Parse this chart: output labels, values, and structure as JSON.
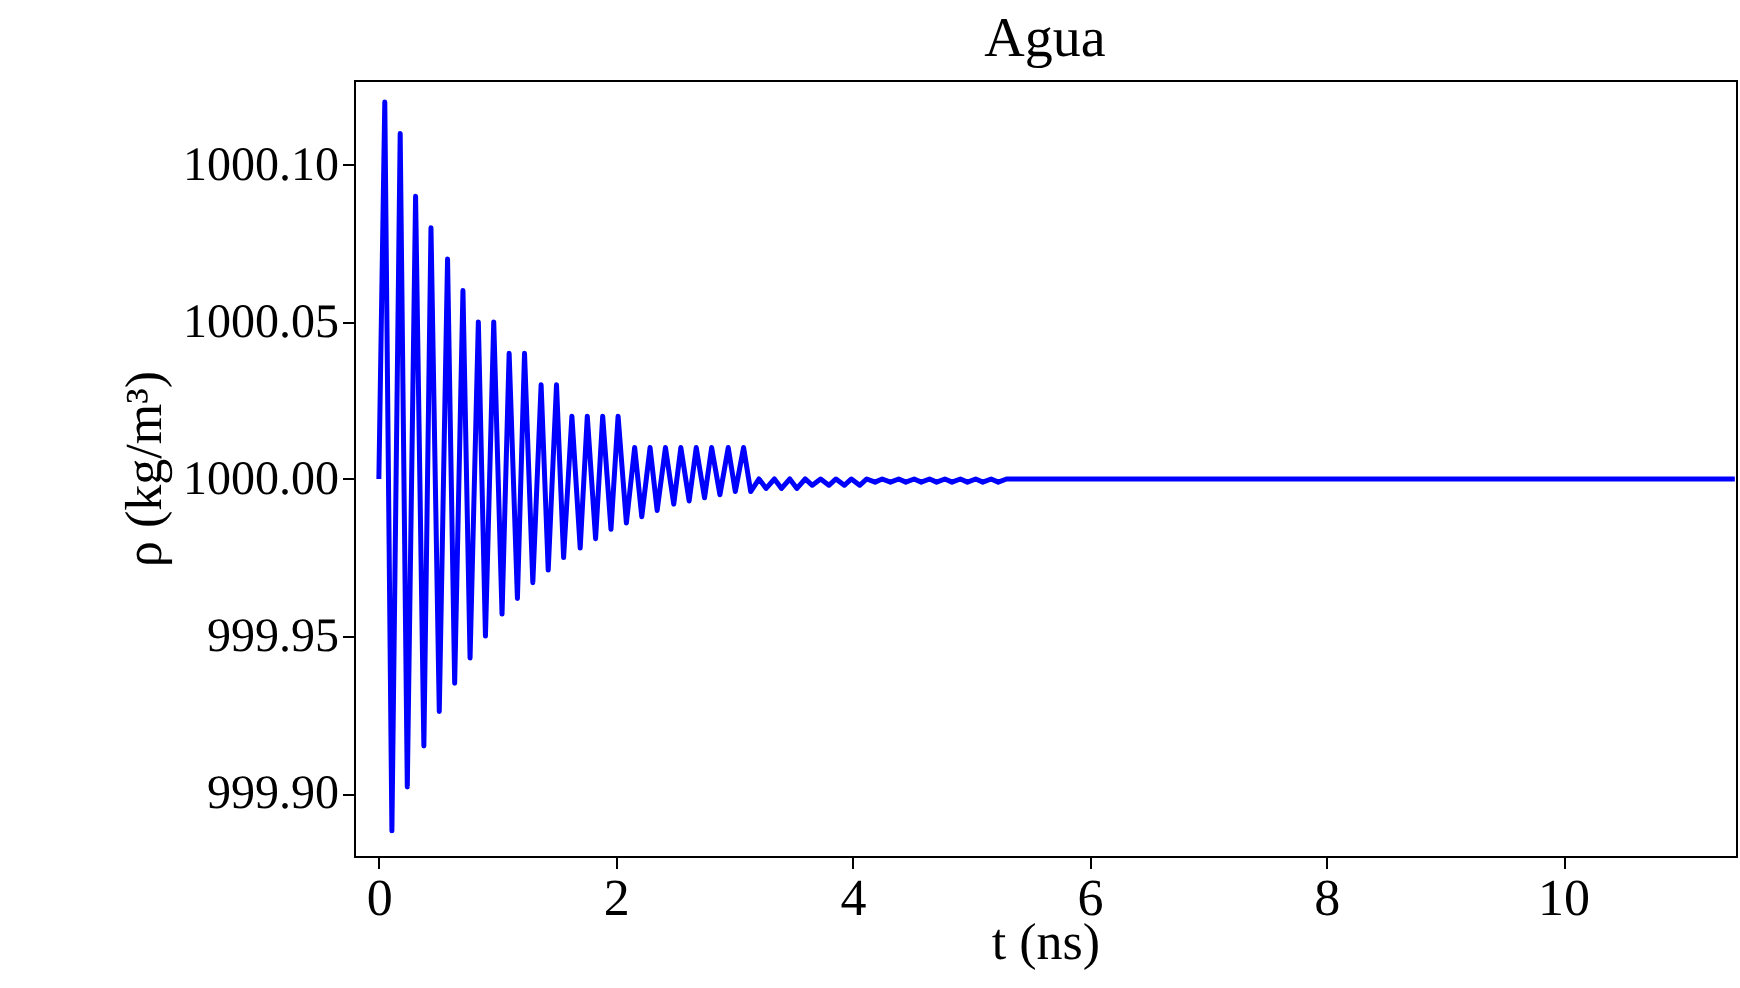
{
  "chart_data": {
    "type": "line",
    "title": "Agua",
    "xlabel": "t   (ns)",
    "ylabel": "ρ  (kg/m³)",
    "x": [
      0,
      0.05,
      0.11,
      0.18,
      0.24,
      0.31,
      0.38,
      0.44,
      0.51,
      0.58,
      0.64,
      0.71,
      0.77,
      0.84,
      0.9,
      0.97,
      1.04,
      1.1,
      1.17,
      1.23,
      1.3,
      1.37,
      1.43,
      1.5,
      1.56,
      1.63,
      1.7,
      1.76,
      1.83,
      1.89,
      1.96,
      2.02,
      2.09,
      2.16,
      2.22,
      2.29,
      2.35,
      2.42,
      2.49,
      2.55,
      2.62,
      2.68,
      2.75,
      2.81,
      2.88,
      2.95,
      3.01,
      3.08,
      3.14,
      3.21,
      3.27,
      3.34,
      3.4,
      3.47,
      3.53,
      3.6,
      3.66,
      3.73,
      3.8,
      3.86,
      3.93,
      3.99,
      4.06,
      4.12,
      4.19,
      4.25,
      4.32,
      4.39,
      4.45,
      4.52,
      4.58,
      4.65,
      4.71,
      4.78,
      4.84,
      4.91,
      4.97,
      5.04,
      5.1,
      5.17,
      5.23,
      5.3,
      11.45
    ],
    "series": [
      {
        "color": "#0000ff",
        "values": [
          1000.0,
          1000.12,
          999.888,
          1000.11,
          999.902,
          1000.09,
          999.915,
          1000.08,
          999.926,
          1000.07,
          999.935,
          1000.06,
          999.943,
          1000.05,
          999.95,
          1000.05,
          999.957,
          1000.04,
          999.962,
          1000.04,
          999.967,
          1000.03,
          999.971,
          1000.03,
          999.975,
          1000.02,
          999.978,
          1000.02,
          999.981,
          1000.02,
          999.984,
          1000.02,
          999.986,
          1000.01,
          999.988,
          1000.01,
          999.99,
          1000.01,
          999.992,
          1000.01,
          999.993,
          1000.01,
          999.994,
          1000.01,
          999.995,
          1000.01,
          999.996,
          1000.01,
          999.996,
          1000.0,
          999.997,
          1000.0,
          999.997,
          1000.0,
          999.997,
          1000.0,
          999.998,
          1000.0,
          999.998,
          1000.0,
          999.998,
          1000.0,
          999.998,
          1000.0,
          999.999,
          1000.0,
          999.999,
          1000.0,
          999.999,
          1000.0,
          999.999,
          1000.0,
          999.999,
          1000.0,
          999.999,
          1000.0,
          999.999,
          1000.0,
          999.999,
          1000.0,
          999.999,
          1000.0,
          1000.0
        ]
      }
    ],
    "xlim": [
      -0.21,
      11.46
    ],
    "xticks": [
      0,
      2,
      4,
      6,
      8,
      10
    ],
    "ylim": [
      999.88,
      1000.127
    ],
    "yticks": [
      {
        "value": 999.9,
        "label": "999.90"
      },
      {
        "value": 999.95,
        "label": "999.95"
      },
      {
        "value": 1000.0,
        "label": "1000.00"
      },
      {
        "value": 1000.05,
        "label": "1000.05"
      },
      {
        "value": 1000.1,
        "label": "1000.10"
      }
    ],
    "grid": false,
    "legend": false
  }
}
